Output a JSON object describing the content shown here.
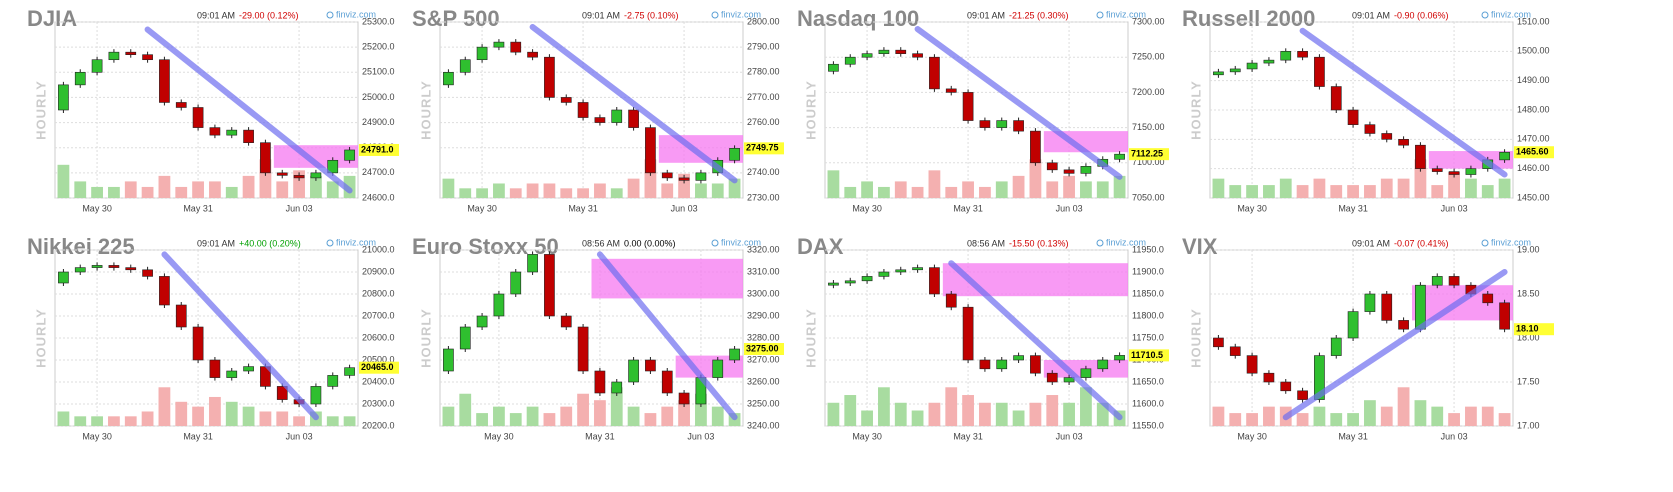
{
  "chart_data": [
    {
      "type": "candlestick",
      "title": "DJIA",
      "time": "09:01 AM",
      "change": "-29.00 (0.12%)",
      "change_color": "#d00000",
      "source": "finviz.com",
      "side_label": "HOURLY",
      "grid": true,
      "categories": [
        null,
        null,
        "May 30",
        null,
        null,
        null,
        null,
        null,
        "May 31",
        null,
        null,
        null,
        null,
        null,
        "Jun 03",
        null,
        null,
        null
      ],
      "open": 24950,
      "closes": [
        25050,
        25100,
        25150,
        25180,
        25170,
        25150,
        24980,
        24960,
        24880,
        24850,
        24870,
        24820,
        24700,
        24690,
        24680,
        24700,
        24750,
        24791
      ],
      "volume": [
        6,
        3,
        2,
        2,
        3,
        2,
        4,
        2,
        3,
        3,
        2,
        4,
        7,
        3,
        5,
        4,
        3,
        4
      ],
      "ylim": [
        24600,
        25300
      ],
      "yticks": [
        {
          "value": 24600,
          "label": "24600.0"
        },
        {
          "value": 24700,
          "label": "24700.0"
        },
        {
          "value": 24800,
          "label": "24800.0"
        },
        {
          "value": 24900,
          "label": "24900.0"
        },
        {
          "value": 25000,
          "label": "25000.0"
        },
        {
          "value": 25100,
          "label": "25100.0"
        },
        {
          "value": 25200,
          "label": "25200.0"
        },
        {
          "value": 25300,
          "label": "25300.0"
        }
      ],
      "last": {
        "value": 24791,
        "label": "24791.0"
      },
      "trendline": {
        "x": [
          5,
          17
        ],
        "y": [
          25270,
          24630
        ]
      },
      "zones": [
        {
          "from": 13,
          "low": 24720,
          "high": 24810
        }
      ]
    },
    {
      "type": "candlestick",
      "title": "S&P 500",
      "time": "09:01 AM",
      "change": "-2.75 (0.10%)",
      "change_color": "#d00000",
      "source": "finviz.com",
      "side_label": "HOURLY",
      "grid": true,
      "categories": [
        null,
        null,
        "May 30",
        null,
        null,
        null,
        null,
        null,
        "May 31",
        null,
        null,
        null,
        null,
        null,
        "Jun 03",
        null,
        null,
        null
      ],
      "open": 2775,
      "closes": [
        2780,
        2785,
        2790,
        2792,
        2788,
        2786,
        2770,
        2768,
        2762,
        2760,
        2765,
        2758,
        2740,
        2738,
        2737,
        2740,
        2745,
        2749.75
      ],
      "volume": [
        4,
        2,
        2,
        3,
        2,
        3,
        3,
        2,
        2,
        3,
        2,
        4,
        8,
        3,
        5,
        3,
        3,
        4
      ],
      "ylim": [
        2730,
        2800
      ],
      "yticks": [
        {
          "value": 2730,
          "label": "2730.00"
        },
        {
          "value": 2740,
          "label": "2740.00"
        },
        {
          "value": 2750,
          "label": "2750.00"
        },
        {
          "value": 2760,
          "label": "2760.00"
        },
        {
          "value": 2770,
          "label": "2770.00"
        },
        {
          "value": 2780,
          "label": "2780.00"
        },
        {
          "value": 2790,
          "label": "2790.00"
        },
        {
          "value": 2800,
          "label": "2800.00"
        }
      ],
      "last": {
        "value": 2749.75,
        "label": "2749.75"
      },
      "trendline": {
        "x": [
          5,
          17
        ],
        "y": [
          2798,
          2737
        ]
      },
      "zones": [
        {
          "from": 13,
          "low": 2744,
          "high": 2755
        }
      ]
    },
    {
      "type": "candlestick",
      "title": "Nasdaq 100",
      "time": "09:01 AM",
      "change": "-21.25 (0.30%)",
      "change_color": "#d00000",
      "source": "finviz.com",
      "side_label": "HOURLY",
      "grid": true,
      "categories": [
        null,
        null,
        "May 30",
        null,
        null,
        null,
        null,
        null,
        "May 31",
        null,
        null,
        null,
        null,
        null,
        "Jun 03",
        null,
        null,
        null
      ],
      "open": 7230,
      "closes": [
        7240,
        7250,
        7255,
        7260,
        7255,
        7250,
        7205,
        7200,
        7160,
        7150,
        7160,
        7145,
        7100,
        7090,
        7085,
        7095,
        7105,
        7112.25
      ],
      "volume": [
        5,
        2,
        3,
        2,
        3,
        2,
        5,
        2,
        3,
        2,
        3,
        4,
        7,
        3,
        4,
        3,
        3,
        4
      ],
      "ylim": [
        7050,
        7300
      ],
      "yticks": [
        {
          "value": 7050,
          "label": "7050.00"
        },
        {
          "value": 7100,
          "label": "7100.00"
        },
        {
          "value": 7150,
          "label": "7150.00"
        },
        {
          "value": 7200,
          "label": "7200.00"
        },
        {
          "value": 7250,
          "label": "7250.00"
        },
        {
          "value": 7300,
          "label": "7300.00"
        }
      ],
      "last": {
        "value": 7112.25,
        "label": "7112.25"
      },
      "trendline": {
        "x": [
          5,
          17
        ],
        "y": [
          7290,
          7080
        ]
      },
      "zones": [
        {
          "from": 13,
          "low": 7115,
          "high": 7145
        }
      ]
    },
    {
      "type": "candlestick",
      "title": "Russell 2000",
      "time": "09:01 AM",
      "change": "-0.90 (0.06%)",
      "change_color": "#d00000",
      "source": "finviz.com",
      "side_label": "HOURLY",
      "grid": true,
      "categories": [
        null,
        null,
        "May 30",
        null,
        null,
        null,
        null,
        null,
        "May 31",
        null,
        null,
        null,
        null,
        null,
        "Jun 03",
        null,
        null,
        null
      ],
      "open": 1492,
      "closes": [
        1493,
        1494,
        1496,
        1497,
        1500,
        1498,
        1488,
        1480,
        1475,
        1472,
        1470,
        1468,
        1460,
        1459,
        1458,
        1460,
        1463,
        1465.6
      ],
      "volume": [
        3,
        2,
        2,
        2,
        3,
        2,
        3,
        2,
        2,
        2,
        3,
        3,
        6,
        2,
        4,
        3,
        2,
        3
      ],
      "ylim": [
        1450,
        1510
      ],
      "yticks": [
        {
          "value": 1450,
          "label": "1450.00"
        },
        {
          "value": 1460,
          "label": "1460.00"
        },
        {
          "value": 1470,
          "label": "1470.00"
        },
        {
          "value": 1480,
          "label": "1480.00"
        },
        {
          "value": 1490,
          "label": "1490.00"
        },
        {
          "value": 1500,
          "label": "1500.00"
        },
        {
          "value": 1510,
          "label": "1510.00"
        }
      ],
      "last": {
        "value": 1465.6,
        "label": "1465.60"
      },
      "trendline": {
        "x": [
          5,
          17
        ],
        "y": [
          1507,
          1458
        ]
      },
      "zones": [
        {
          "from": 13,
          "low": 1460,
          "high": 1466
        }
      ]
    },
    {
      "type": "candlestick",
      "title": "Nikkei 225",
      "time": "09:01 AM",
      "change": "+40.00 (0.20%)",
      "change_color": "#00a000",
      "source": "finviz.com",
      "side_label": "HOURLY",
      "grid": true,
      "categories": [
        null,
        null,
        "May 30",
        null,
        null,
        null,
        null,
        null,
        "May 31",
        null,
        null,
        null,
        null,
        null,
        "Jun 03",
        null,
        null,
        null
      ],
      "open": 20850,
      "closes": [
        20900,
        20920,
        20930,
        20920,
        20910,
        20880,
        20750,
        20650,
        20500,
        20420,
        20450,
        20470,
        20380,
        20320,
        20300,
        20380,
        20430,
        20465
      ],
      "volume": [
        3,
        2,
        2,
        2,
        2,
        3,
        8,
        5,
        4,
        6,
        5,
        4,
        3,
        3,
        2,
        3,
        2,
        2
      ],
      "ylim": [
        20200,
        21000
      ],
      "yticks": [
        {
          "value": 20200,
          "label": "20200.0"
        },
        {
          "value": 20300,
          "label": "20300.0"
        },
        {
          "value": 20400,
          "label": "20400.0"
        },
        {
          "value": 20500,
          "label": "20500.0"
        },
        {
          "value": 20600,
          "label": "20600.0"
        },
        {
          "value": 20700,
          "label": "20700.0"
        },
        {
          "value": 20800,
          "label": "20800.0"
        },
        {
          "value": 20900,
          "label": "20900.0"
        },
        {
          "value": 21000,
          "label": "21000.0"
        }
      ],
      "last": {
        "value": 20465,
        "label": "20465.0"
      },
      "trendline": {
        "x": [
          6,
          15
        ],
        "y": [
          20980,
          20240
        ]
      },
      "zones": []
    },
    {
      "type": "candlestick",
      "title": "Euro Stoxx 50",
      "time": "08:56 AM",
      "change": "0.00 (0.00%)",
      "change_color": "#000000",
      "source": "finviz.com",
      "side_label": "HOURLY",
      "grid": true,
      "categories": [
        null,
        null,
        null,
        "May 30",
        null,
        null,
        null,
        null,
        null,
        "May 31",
        null,
        null,
        null,
        null,
        null,
        "Jun 03",
        null,
        null
      ],
      "open": 3265,
      "closes": [
        3275,
        3285,
        3290,
        3300,
        3310,
        3318,
        3290,
        3285,
        3265,
        3255,
        3260,
        3270,
        3265,
        3255,
        3250,
        3262,
        3270,
        3275
      ],
      "volume": [
        3,
        5,
        2,
        3,
        2,
        3,
        2,
        3,
        5,
        4,
        6,
        3,
        2,
        3,
        4,
        5,
        3,
        2
      ],
      "ylim": [
        3240,
        3320
      ],
      "yticks": [
        {
          "value": 3240,
          "label": "3240.00"
        },
        {
          "value": 3250,
          "label": "3250.00"
        },
        {
          "value": 3260,
          "label": "3260.00"
        },
        {
          "value": 3270,
          "label": "3270.00"
        },
        {
          "value": 3280,
          "label": "3280.00"
        },
        {
          "value": 3290,
          "label": "3290.00"
        },
        {
          "value": 3300,
          "label": "3300.00"
        },
        {
          "value": 3310,
          "label": "3310.00"
        },
        {
          "value": 3320,
          "label": "3320.00"
        }
      ],
      "last": {
        "value": 3275,
        "label": "3275.00"
      },
      "trendline": {
        "x": [
          9,
          17
        ],
        "y": [
          3318,
          3244
        ]
      },
      "zones": [
        {
          "from": 9,
          "low": 3298,
          "high": 3316
        },
        {
          "from": 14,
          "low": 3262,
          "high": 3272
        }
      ]
    },
    {
      "type": "candlestick",
      "title": "DAX",
      "time": "08:56 AM",
      "change": "-15.50 (0.13%)",
      "change_color": "#d00000",
      "source": "finviz.com",
      "side_label": "HOURLY",
      "grid": true,
      "categories": [
        null,
        null,
        "May 30",
        null,
        null,
        null,
        null,
        null,
        "May 31",
        null,
        null,
        null,
        null,
        null,
        "Jun 03",
        null,
        null,
        null
      ],
      "open": 11870,
      "closes": [
        11875,
        11880,
        11890,
        11900,
        11905,
        11910,
        11850,
        11820,
        11700,
        11680,
        11700,
        11710,
        11670,
        11650,
        11660,
        11680,
        11700,
        11710.5
      ],
      "volume": [
        3,
        4,
        2,
        5,
        3,
        2,
        3,
        5,
        4,
        3,
        3,
        2,
        3,
        4,
        3,
        5,
        3,
        2
      ],
      "ylim": [
        11550,
        11950
      ],
      "yticks": [
        {
          "value": 11550,
          "label": "11550.0"
        },
        {
          "value": 11600,
          "label": "11600.0"
        },
        {
          "value": 11650,
          "label": "11650.0"
        },
        {
          "value": 11700,
          "label": "11700.0"
        },
        {
          "value": 11750,
          "label": "11750.0"
        },
        {
          "value": 11800,
          "label": "11800.0"
        },
        {
          "value": 11850,
          "label": "11850.0"
        },
        {
          "value": 11900,
          "label": "11900.0"
        },
        {
          "value": 11950,
          "label": "11950.0"
        }
      ],
      "last": {
        "value": 11710.5,
        "label": "11710.5"
      },
      "trendline": {
        "x": [
          7,
          17
        ],
        "y": [
          11920,
          11570
        ]
      },
      "zones": [
        {
          "from": 7,
          "low": 11845,
          "high": 11920
        },
        {
          "from": 13,
          "low": 11660,
          "high": 11700
        }
      ]
    },
    {
      "type": "candlestick",
      "title": "VIX",
      "time": "09:01 AM",
      "change": "-0.07 (0.41%)",
      "change_color": "#d00000",
      "source": "finviz.com",
      "side_label": "HOURLY",
      "grid": true,
      "categories": [
        null,
        null,
        "May 30",
        null,
        null,
        null,
        null,
        null,
        "May 31",
        null,
        null,
        null,
        null,
        null,
        "Jun 03",
        null,
        null,
        null
      ],
      "open": 18.0,
      "closes": [
        17.9,
        17.8,
        17.6,
        17.5,
        17.4,
        17.3,
        17.8,
        18.0,
        18.3,
        18.5,
        18.2,
        18.1,
        18.6,
        18.7,
        18.6,
        18.5,
        18.4,
        18.1
      ],
      "volume": [
        3,
        2,
        2,
        3,
        3,
        2,
        3,
        2,
        2,
        4,
        3,
        6,
        4,
        3,
        2,
        3,
        3,
        2
      ],
      "ylim": [
        17,
        19
      ],
      "yticks": [
        {
          "value": 17,
          "label": "17.00"
        },
        {
          "value": 17.5,
          "label": "17.50"
        },
        {
          "value": 18,
          "label": "18.00"
        },
        {
          "value": 18.5,
          "label": "18.50"
        },
        {
          "value": 19,
          "label": "19.00"
        }
      ],
      "last": {
        "value": 18.1,
        "label": "18.10"
      },
      "trendline": {
        "x": [
          4,
          17
        ],
        "y": [
          17.1,
          18.75
        ]
      },
      "zones": [
        {
          "from": 12,
          "low": 18.2,
          "high": 18.6
        }
      ]
    }
  ]
}
